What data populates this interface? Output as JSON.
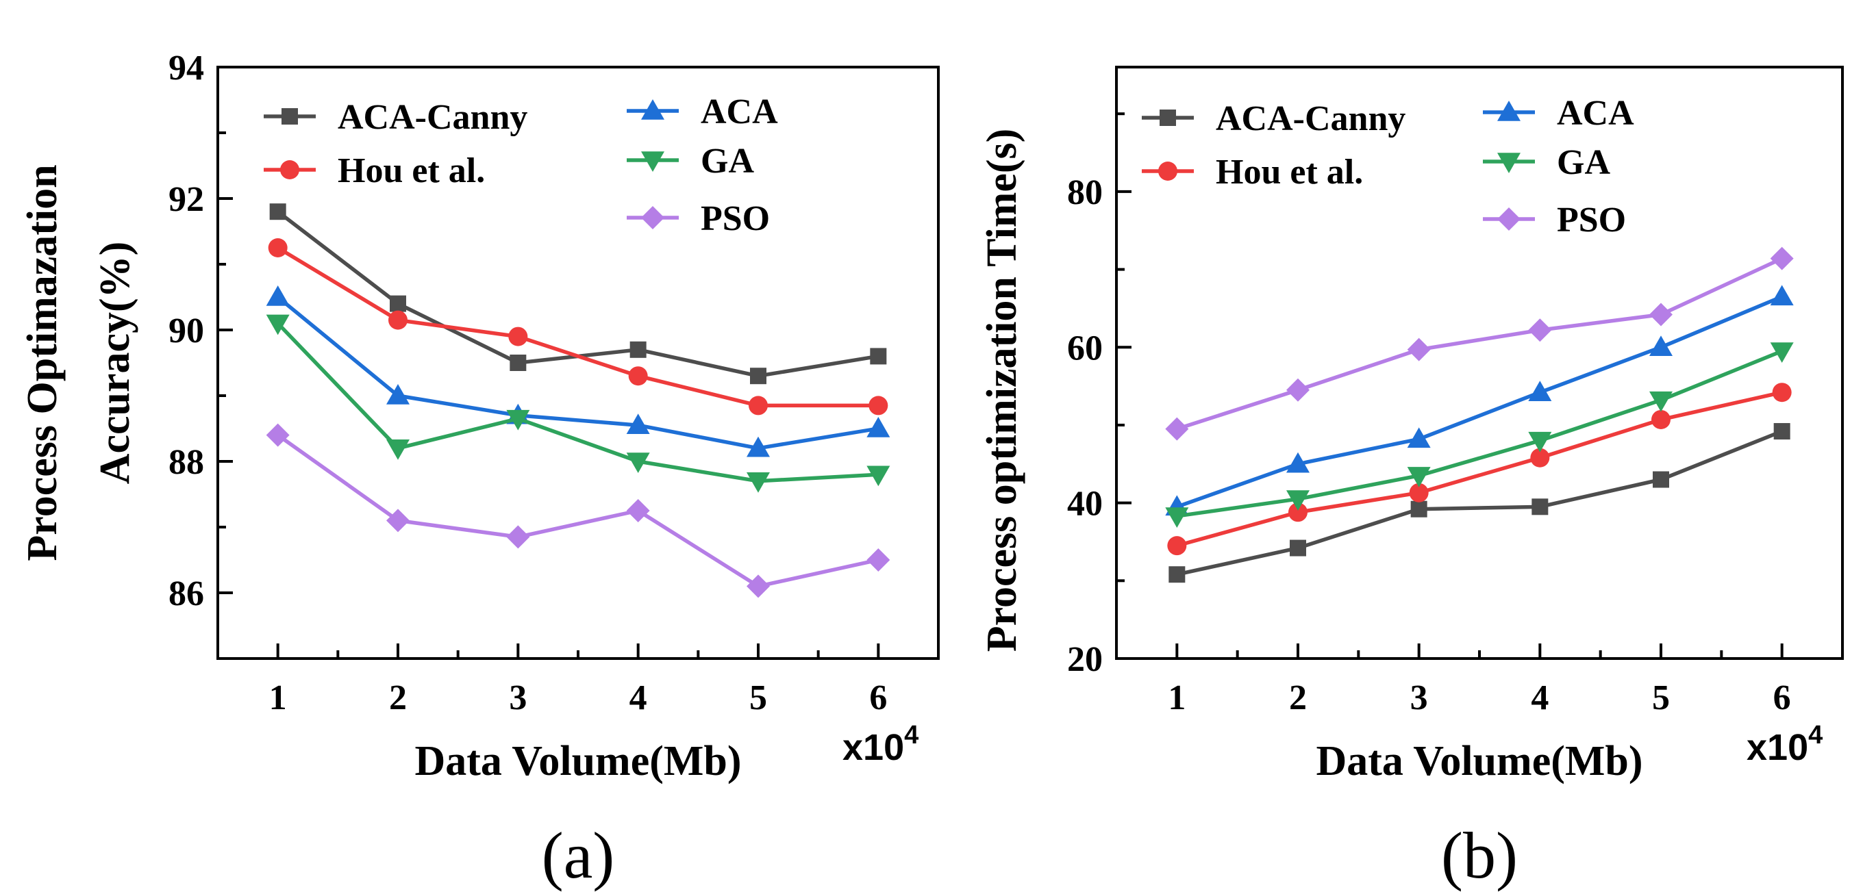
{
  "chart_data": [
    {
      "panel_label": "(a)",
      "type": "line",
      "xlabel": "Data Volume(Mb)",
      "ylabel_lines": [
        "Process Optimazation",
        "Accuracy(%)"
      ],
      "x_multiplier": {
        "base": "x10",
        "exponent": "4"
      },
      "x": [
        1,
        2,
        3,
        4,
        5,
        6
      ],
      "x_ticks": [
        "1",
        "2",
        "3",
        "4",
        "5",
        "6"
      ],
      "xlim": [
        0.5,
        6.5
      ],
      "ylim": [
        85,
        94
      ],
      "y_ticks": [
        86,
        88,
        90,
        92,
        94
      ],
      "grid": false,
      "legend_position": "top-left",
      "series": [
        {
          "name": "ACA-Canny",
          "color": "#4d4d4d",
          "marker": "square",
          "values": [
            91.8,
            90.4,
            89.5,
            89.7,
            89.3,
            89.6
          ]
        },
        {
          "name": "Hou et al.",
          "color": "#ee3b3b",
          "marker": "circle",
          "values": [
            91.25,
            90.15,
            89.9,
            89.3,
            88.85,
            88.85
          ]
        },
        {
          "name": "ACA",
          "color": "#1e6fd6",
          "marker": "triangle-up",
          "values": [
            90.5,
            89.0,
            88.7,
            88.55,
            88.2,
            88.5
          ]
        },
        {
          "name": "GA",
          "color": "#2ea35c",
          "marker": "triangle-down",
          "values": [
            90.1,
            88.2,
            88.65,
            88.0,
            87.7,
            87.8
          ]
        },
        {
          "name": "PSO",
          "color": "#b57ee6",
          "marker": "diamond",
          "values": [
            88.4,
            87.1,
            86.85,
            87.25,
            86.1,
            86.5
          ]
        }
      ]
    },
    {
      "panel_label": "(b)",
      "type": "line",
      "xlabel": "Data Volume(Mb)",
      "ylabel_lines": [
        "Process optimization Time(s)"
      ],
      "x_multiplier": {
        "base": "x10",
        "exponent": "4"
      },
      "x": [
        1,
        2,
        3,
        4,
        5,
        6
      ],
      "x_ticks": [
        "1",
        "2",
        "3",
        "4",
        "5",
        "6"
      ],
      "xlim": [
        0.5,
        6.5
      ],
      "ylim": [
        20,
        96
      ],
      "y_ticks": [
        20,
        40,
        60,
        80
      ],
      "grid": false,
      "legend_position": "top-left",
      "series": [
        {
          "name": "ACA-Canny",
          "color": "#4d4d4d",
          "marker": "square",
          "values": [
            30.8,
            34.2,
            39.2,
            39.5,
            43.0,
            49.2
          ]
        },
        {
          "name": "Hou et al.",
          "color": "#ee3b3b",
          "marker": "circle",
          "values": [
            34.5,
            38.8,
            41.3,
            45.8,
            50.7,
            54.2
          ]
        },
        {
          "name": "ACA",
          "color": "#1e6fd6",
          "marker": "triangle-up",
          "values": [
            39.5,
            45.0,
            48.2,
            54.2,
            60.0,
            66.5
          ]
        },
        {
          "name": "GA",
          "color": "#2ea35c",
          "marker": "triangle-down",
          "values": [
            38.3,
            40.5,
            43.5,
            48.0,
            53.2,
            59.5
          ]
        },
        {
          "name": "PSO",
          "color": "#b57ee6",
          "marker": "diamond",
          "values": [
            49.5,
            54.5,
            59.7,
            62.2,
            64.2,
            71.4
          ]
        }
      ]
    }
  ]
}
